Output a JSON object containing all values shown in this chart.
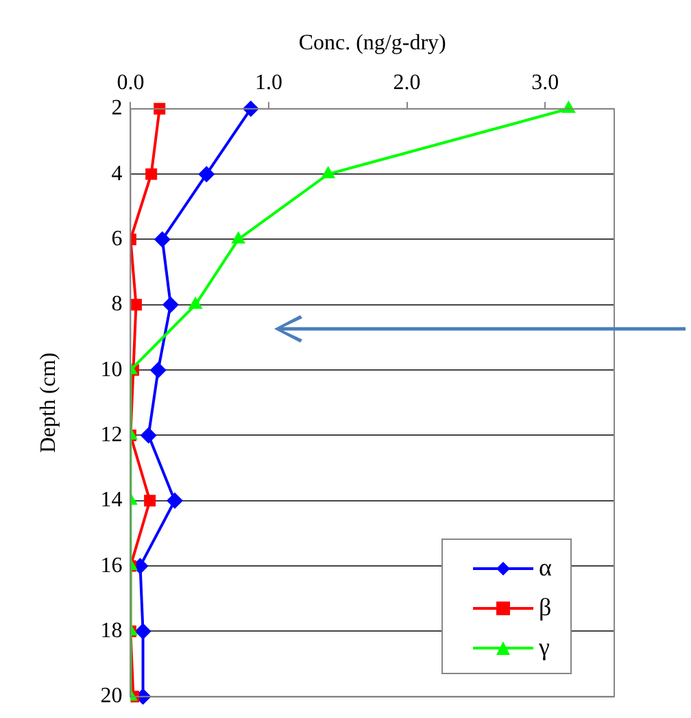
{
  "chart_data": {
    "type": "line",
    "orientation": "horizontal",
    "xlabel": "Conc. (ng/g-dry)",
    "ylabel": "Depth (cm)",
    "categories": [
      "2",
      "4",
      "6",
      "8",
      "10",
      "12",
      "14",
      "16",
      "18",
      "20"
    ],
    "xlim": [
      0,
      3.5
    ],
    "xticks": [
      {
        "value": 0,
        "label": "0.0"
      },
      {
        "value": 1,
        "label": "1.0"
      },
      {
        "value": 2,
        "label": "2.0"
      },
      {
        "value": 3,
        "label": "3.0"
      }
    ],
    "grid": "y",
    "legend": "bottom right",
    "line_style": "solid",
    "series": [
      {
        "name": "α",
        "color": "#0000ff",
        "marker": "diamond",
        "values": [
          0.87,
          0.55,
          0.23,
          0.29,
          0.2,
          0.13,
          0.32,
          0.07,
          0.09,
          0.09
        ]
      },
      {
        "name": "β",
        "color": "#ff0000",
        "marker": "square",
        "values": [
          0.21,
          0.15,
          0.0,
          0.04,
          0.02,
          0.0,
          0.14,
          0.0,
          0.0,
          0.02
        ]
      },
      {
        "name": "γ",
        "color": "#00ff00",
        "marker": "triangle",
        "values": [
          3.17,
          1.43,
          0.78,
          0.47,
          0.0,
          0.0,
          0.0,
          0.0,
          0.0,
          0.0
        ]
      }
    ]
  }
}
